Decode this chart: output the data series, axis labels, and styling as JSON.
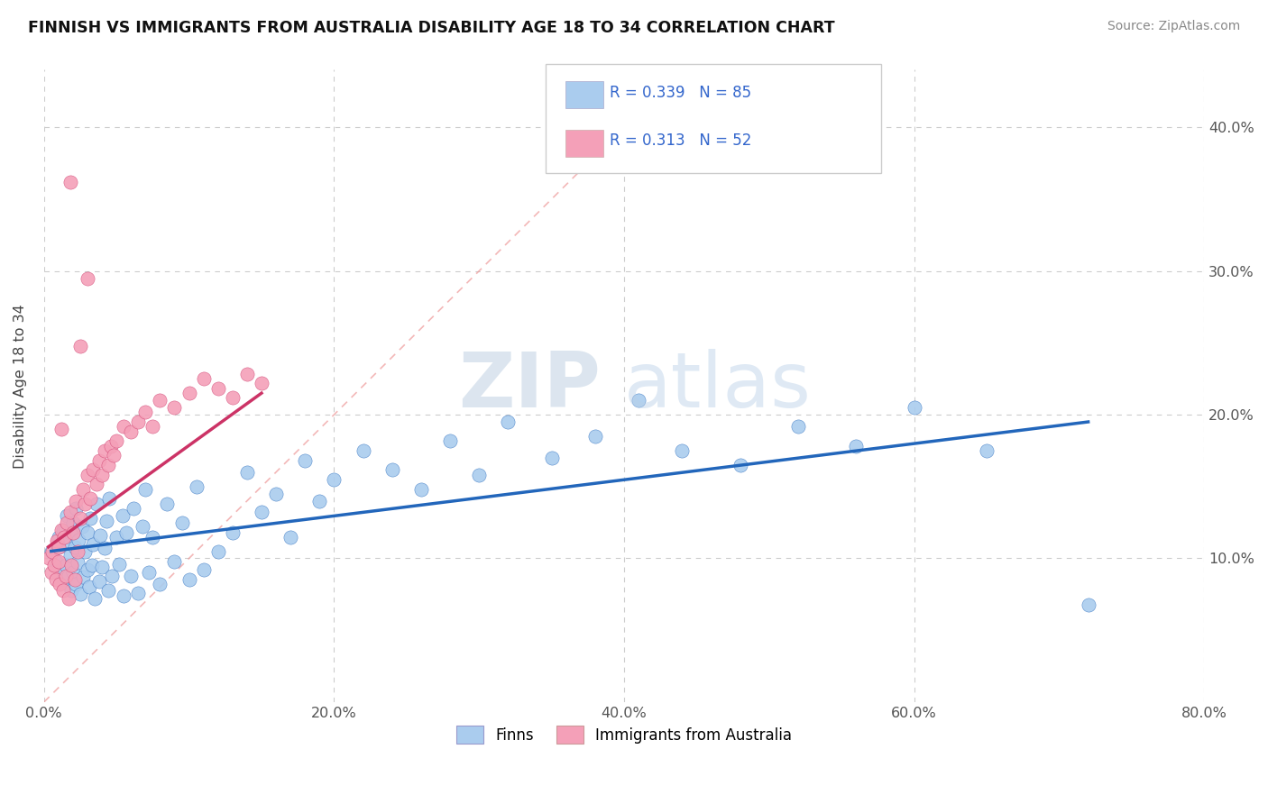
{
  "title": "FINNISH VS IMMIGRANTS FROM AUSTRALIA DISABILITY AGE 18 TO 34 CORRELATION CHART",
  "source": "Source: ZipAtlas.com",
  "ylabel": "Disability Age 18 to 34",
  "xlim": [
    0.0,
    0.8
  ],
  "ylim": [
    0.0,
    0.44
  ],
  "xtick_labels": [
    "0.0%",
    "20.0%",
    "40.0%",
    "60.0%",
    "80.0%"
  ],
  "xtick_values": [
    0.0,
    0.2,
    0.4,
    0.6,
    0.8
  ],
  "ytick_labels_right": [
    "10.0%",
    "20.0%",
    "30.0%",
    "40.0%"
  ],
  "ytick_values_right": [
    0.1,
    0.2,
    0.3,
    0.4
  ],
  "r_finns": 0.339,
  "n_finns": 85,
  "r_immigrants": 0.313,
  "n_immigrants": 52,
  "color_finns": "#aaccee",
  "color_immigrants": "#f4a0b8",
  "color_finns_line": "#2266bb",
  "color_immigrants_line": "#cc3366",
  "color_diag_line": "#ee9999",
  "legend_label_finns": "Finns",
  "legend_label_immigrants": "Immigrants from Australia",
  "watermark_zip": "ZIP",
  "watermark_atlas": "atlas",
  "finns_x": [
    0.005,
    0.008,
    0.01,
    0.01,
    0.012,
    0.013,
    0.014,
    0.015,
    0.015,
    0.016,
    0.017,
    0.018,
    0.018,
    0.019,
    0.02,
    0.02,
    0.021,
    0.022,
    0.022,
    0.023,
    0.024,
    0.025,
    0.026,
    0.027,
    0.028,
    0.03,
    0.03,
    0.031,
    0.032,
    0.033,
    0.034,
    0.035,
    0.036,
    0.038,
    0.039,
    0.04,
    0.042,
    0.043,
    0.044,
    0.045,
    0.047,
    0.05,
    0.052,
    0.054,
    0.055,
    0.057,
    0.06,
    0.062,
    0.065,
    0.068,
    0.07,
    0.072,
    0.075,
    0.08,
    0.085,
    0.09,
    0.095,
    0.1,
    0.105,
    0.11,
    0.12,
    0.13,
    0.14,
    0.15,
    0.16,
    0.17,
    0.18,
    0.19,
    0.2,
    0.22,
    0.24,
    0.26,
    0.28,
    0.3,
    0.32,
    0.35,
    0.38,
    0.41,
    0.44,
    0.48,
    0.52,
    0.56,
    0.6,
    0.65,
    0.72
  ],
  "finns_y": [
    0.105,
    0.098,
    0.115,
    0.108,
    0.092,
    0.12,
    0.085,
    0.112,
    0.095,
    0.13,
    0.088,
    0.102,
    0.118,
    0.078,
    0.125,
    0.09,
    0.108,
    0.082,
    0.135,
    0.097,
    0.113,
    0.075,
    0.122,
    0.087,
    0.105,
    0.092,
    0.118,
    0.08,
    0.128,
    0.095,
    0.11,
    0.072,
    0.138,
    0.084,
    0.116,
    0.094,
    0.107,
    0.126,
    0.078,
    0.142,
    0.088,
    0.115,
    0.096,
    0.13,
    0.074,
    0.118,
    0.088,
    0.135,
    0.076,
    0.122,
    0.148,
    0.09,
    0.115,
    0.082,
    0.138,
    0.098,
    0.125,
    0.085,
    0.15,
    0.092,
    0.105,
    0.118,
    0.16,
    0.132,
    0.145,
    0.115,
    0.168,
    0.14,
    0.155,
    0.175,
    0.162,
    0.148,
    0.182,
    0.158,
    0.195,
    0.17,
    0.185,
    0.21,
    0.175,
    0.165,
    0.192,
    0.178,
    0.205,
    0.175,
    0.068
  ],
  "immigrants_x": [
    0.003,
    0.005,
    0.006,
    0.007,
    0.008,
    0.009,
    0.01,
    0.01,
    0.011,
    0.012,
    0.013,
    0.014,
    0.015,
    0.016,
    0.017,
    0.018,
    0.019,
    0.02,
    0.021,
    0.022,
    0.023,
    0.025,
    0.027,
    0.028,
    0.03,
    0.032,
    0.034,
    0.036,
    0.038,
    0.04,
    0.042,
    0.044,
    0.046,
    0.048,
    0.05,
    0.055,
    0.06,
    0.065,
    0.07,
    0.075,
    0.08,
    0.09,
    0.1,
    0.11,
    0.12,
    0.13,
    0.14,
    0.15,
    0.03,
    0.025,
    0.018,
    0.012
  ],
  "immigrants_y": [
    0.1,
    0.09,
    0.105,
    0.095,
    0.085,
    0.112,
    0.098,
    0.108,
    0.082,
    0.12,
    0.078,
    0.115,
    0.088,
    0.125,
    0.072,
    0.132,
    0.095,
    0.118,
    0.085,
    0.14,
    0.105,
    0.128,
    0.148,
    0.138,
    0.158,
    0.142,
    0.162,
    0.152,
    0.168,
    0.158,
    0.175,
    0.165,
    0.178,
    0.172,
    0.182,
    0.192,
    0.188,
    0.195,
    0.202,
    0.192,
    0.21,
    0.205,
    0.215,
    0.225,
    0.218,
    0.212,
    0.228,
    0.222,
    0.295,
    0.248,
    0.362,
    0.19
  ],
  "finns_trend_x": [
    0.005,
    0.72
  ],
  "finns_trend_y": [
    0.105,
    0.195
  ],
  "immigrants_trend_x": [
    0.003,
    0.15
  ],
  "immigrants_trend_y": [
    0.108,
    0.215
  ]
}
